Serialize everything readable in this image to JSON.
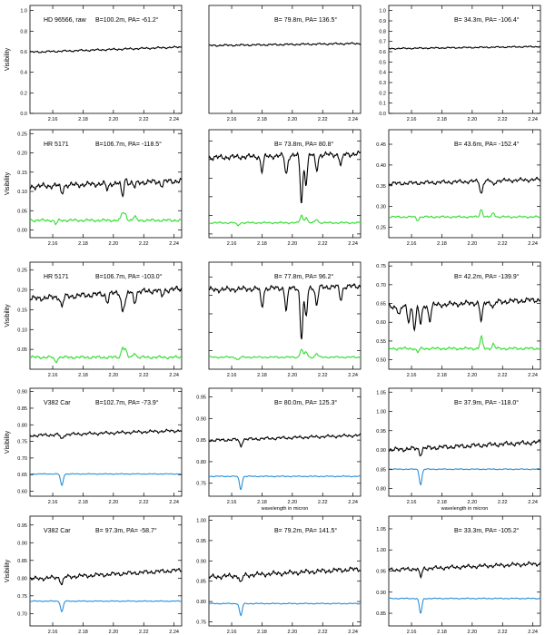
{
  "figure": {
    "x_axis_title": "wavelength in micron"
  },
  "chart_data": [
    {
      "type": "line",
      "row": 0,
      "col": 0,
      "star": "HD 96566, raw",
      "baseline": "B=100.2m, PA= -61.2°",
      "ylabel": "Visibility",
      "ylim": [
        0.0,
        1.05
      ],
      "yticks": [
        0.0,
        0.2,
        0.4,
        0.6,
        0.8,
        1.0
      ],
      "ytick_labels": [
        "0.0",
        "0.2",
        "0.4",
        "0.6",
        "0.8",
        "1.0"
      ],
      "xlim": [
        2.145,
        2.245
      ],
      "xticks": [
        2.16,
        2.18,
        2.2,
        2.22,
        2.24
      ],
      "xtick_labels": [
        "2.16",
        "2.18",
        "2.20",
        "2.22",
        "2.24"
      ],
      "xlabel": "",
      "series": [
        {
          "color": "#000000",
          "level": 0.62,
          "trend": 0.05,
          "noise": 0.008
        }
      ]
    },
    {
      "type": "line",
      "row": 0,
      "col": 1,
      "star": "",
      "baseline": "B= 79.8m, PA= 136.5°",
      "ylabel": "",
      "ylim": [
        0.0,
        1.05
      ],
      "yticks": [],
      "ytick_labels": [],
      "xlim": [
        2.145,
        2.245
      ],
      "xticks": [
        2.16,
        2.18,
        2.2,
        2.22,
        2.24
      ],
      "xtick_labels": [
        "2.16",
        "2.18",
        "2.20",
        "2.22",
        "2.24"
      ],
      "xlabel": "",
      "series": [
        {
          "color": "#000000",
          "level": 0.67,
          "trend": 0.02,
          "noise": 0.008
        }
      ]
    },
    {
      "type": "line",
      "row": 0,
      "col": 2,
      "star": "",
      "baseline": "B= 34.3m, PA= -106.4°",
      "ylabel": "",
      "ylim": [
        0.0,
        1.05
      ],
      "yticks": [
        0.0,
        0.1,
        0.2,
        0.3,
        0.4,
        0.5,
        0.6,
        0.7,
        0.8,
        0.9,
        1.0
      ],
      "ytick_labels": [
        "0.0",
        "0.1",
        "0.2",
        "0.3",
        "0.4",
        "0.5",
        "0.6",
        "0.7",
        "0.8",
        "0.9",
        "1.0"
      ],
      "xlim": [
        2.145,
        2.245
      ],
      "xticks": [
        2.16,
        2.18,
        2.2,
        2.22,
        2.24
      ],
      "xtick_labels": [
        "2.16",
        "2.18",
        "2.20",
        "2.22",
        "2.24"
      ],
      "xlabel": "",
      "series": [
        {
          "color": "#000000",
          "level": 0.64,
          "trend": 0.02,
          "noise": 0.006
        }
      ]
    },
    {
      "type": "line",
      "row": 1,
      "col": 0,
      "star": "HR 5171",
      "baseline": "B=106.7m, PA= -118.5°",
      "ylabel": "Visibility",
      "ylim": [
        -0.02,
        0.26
      ],
      "yticks": [
        0.0,
        0.05,
        0.1,
        0.15,
        0.2,
        0.25
      ],
      "ytick_labels": [
        "0.00",
        "0.05",
        "0.10",
        "0.15",
        "0.20",
        "0.25"
      ],
      "xlim": [
        2.145,
        2.245
      ],
      "xticks": [
        2.16,
        2.18,
        2.2,
        2.22,
        2.24
      ],
      "xtick_labels": [
        "2.16",
        "2.18",
        "2.20",
        "2.22",
        "2.24"
      ],
      "xlabel": "",
      "series": [
        {
          "color": "#000000",
          "level": 0.12,
          "trend": 0.015,
          "noise": 0.006,
          "features": [
            [
              2.166,
              -0.02
            ],
            [
              2.196,
              -0.015
            ],
            [
              2.206,
              -0.035
            ],
            [
              2.208,
              0.012
            ],
            [
              2.214,
              -0.012
            ],
            [
              2.232,
              -0.01
            ]
          ]
        },
        {
          "color": "#33dd33",
          "level": 0.025,
          "trend": 0.0,
          "noise": 0.003,
          "features": [
            [
              2.162,
              -0.01
            ],
            [
              2.206,
              0.02
            ],
            [
              2.208,
              0.015
            ],
            [
              2.214,
              0.01
            ]
          ]
        }
      ]
    },
    {
      "type": "line",
      "row": 1,
      "col": 1,
      "star": "",
      "baseline": "B= 73.8m, PA= 80.8°",
      "ylabel": "",
      "ylim": [
        -0.02,
        0.56
      ],
      "yticks": [
        0.0,
        0.1,
        0.2,
        0.3,
        0.4,
        0.5
      ],
      "ytick_labels": [],
      "xlim": [
        2.145,
        2.245
      ],
      "xticks": [
        2.16,
        2.18,
        2.2,
        2.22,
        2.24
      ],
      "xtick_labels": [
        "2.16",
        "2.18",
        "2.20",
        "2.22",
        "2.24"
      ],
      "xlabel": "",
      "series": [
        {
          "color": "#000000",
          "level": 0.42,
          "trend": 0.02,
          "noise": 0.012,
          "features": [
            [
              2.18,
              -0.08
            ],
            [
              2.196,
              -0.1
            ],
            [
              2.206,
              -0.25
            ],
            [
              2.209,
              -0.15
            ],
            [
              2.216,
              -0.08
            ],
            [
              2.232,
              -0.06
            ]
          ]
        },
        {
          "color": "#33dd33",
          "level": 0.06,
          "trend": 0.0,
          "noise": 0.004,
          "features": [
            [
              2.164,
              -0.015
            ],
            [
              2.206,
              0.04
            ],
            [
              2.209,
              0.03
            ],
            [
              2.216,
              0.02
            ]
          ]
        }
      ]
    },
    {
      "type": "line",
      "row": 1,
      "col": 2,
      "star": "",
      "baseline": "B= 43.6m, PA= -152.4°",
      "ylabel": "",
      "ylim": [
        0.225,
        0.485
      ],
      "yticks": [
        0.25,
        0.3,
        0.35,
        0.4,
        0.45
      ],
      "ytick_labels": [
        "0.25",
        "0.30",
        "0.35",
        "0.40",
        "0.45"
      ],
      "xlim": [
        2.145,
        2.245
      ],
      "xticks": [
        2.16,
        2.18,
        2.2,
        2.22,
        2.24
      ],
      "xtick_labels": [
        "2.16",
        "2.18",
        "2.20",
        "2.22",
        "2.24"
      ],
      "xlabel": "",
      "series": [
        {
          "color": "#000000",
          "level": 0.36,
          "trend": 0.01,
          "noise": 0.004,
          "features": [
            [
              2.206,
              -0.03
            ],
            [
              2.214,
              -0.01
            ]
          ]
        },
        {
          "color": "#33dd33",
          "level": 0.275,
          "trend": 0.0,
          "noise": 0.002,
          "features": [
            [
              2.164,
              -0.008
            ],
            [
              2.206,
              0.018
            ],
            [
              2.214,
              0.01
            ]
          ]
        }
      ]
    },
    {
      "type": "line",
      "row": 2,
      "col": 0,
      "star": "HR 5171",
      "baseline": "B=106.7m, PA= -103.0°",
      "ylabel": "Visibility",
      "ylim": [
        0.0,
        0.27
      ],
      "yticks": [
        0.05,
        0.1,
        0.15,
        0.2,
        0.25
      ],
      "ytick_labels": [
        "0.05",
        "0.10",
        "0.15",
        "0.20",
        "0.25"
      ],
      "xlim": [
        2.145,
        2.245
      ],
      "xticks": [
        2.16,
        2.18,
        2.2,
        2.22,
        2.24
      ],
      "xtick_labels": [
        "2.16",
        "2.18",
        "2.20",
        "2.22",
        "2.24"
      ],
      "xlabel": "",
      "series": [
        {
          "color": "#000000",
          "level": 0.19,
          "trend": 0.025,
          "noise": 0.006,
          "features": [
            [
              2.166,
              -0.025
            ],
            [
              2.196,
              -0.02
            ],
            [
              2.206,
              -0.045
            ],
            [
              2.208,
              -0.02
            ],
            [
              2.214,
              -0.025
            ],
            [
              2.232,
              -0.015
            ]
          ]
        },
        {
          "color": "#33dd33",
          "level": 0.03,
          "trend": 0.0,
          "noise": 0.003,
          "features": [
            [
              2.162,
              -0.012
            ],
            [
              2.206,
              0.025
            ],
            [
              2.208,
              0.018
            ],
            [
              2.214,
              0.012
            ]
          ]
        }
      ]
    },
    {
      "type": "line",
      "row": 2,
      "col": 1,
      "star": "",
      "baseline": "B= 77.8m, PA= 96.2°",
      "ylabel": "",
      "ylim": [
        0.0,
        0.58
      ],
      "yticks": [
        0.1,
        0.2,
        0.3,
        0.4,
        0.5
      ],
      "ytick_labels": [],
      "xlim": [
        2.145,
        2.245
      ],
      "xticks": [
        2.16,
        2.18,
        2.2,
        2.22,
        2.24
      ],
      "xtick_labels": [
        "2.16",
        "2.18",
        "2.20",
        "2.22",
        "2.24"
      ],
      "xlabel": "",
      "series": [
        {
          "color": "#000000",
          "level": 0.44,
          "trend": 0.02,
          "noise": 0.012,
          "features": [
            [
              2.18,
              -0.1
            ],
            [
              2.196,
              -0.12
            ],
            [
              2.206,
              -0.28
            ],
            [
              2.209,
              -0.16
            ],
            [
              2.216,
              -0.1
            ],
            [
              2.232,
              -0.07
            ]
          ]
        },
        {
          "color": "#33dd33",
          "level": 0.065,
          "trend": 0.0,
          "noise": 0.004,
          "features": [
            [
              2.164,
              -0.015
            ],
            [
              2.206,
              0.045
            ],
            [
              2.209,
              0.03
            ],
            [
              2.216,
              0.02
            ]
          ]
        }
      ]
    },
    {
      "type": "line",
      "row": 2,
      "col": 2,
      "star": "",
      "baseline": "B= 42.2m, PA= -139.9°",
      "ylabel": "",
      "ylim": [
        0.475,
        0.76
      ],
      "yticks": [
        0.5,
        0.55,
        0.6,
        0.65,
        0.7,
        0.75
      ],
      "ytick_labels": [
        "0.50",
        "0.55",
        "0.60",
        "0.65",
        "0.70",
        "0.75"
      ],
      "xlim": [
        2.145,
        2.245
      ],
      "xticks": [
        2.16,
        2.18,
        2.2,
        2.22,
        2.24
      ],
      "xtick_labels": [
        "2.16",
        "2.18",
        "2.20",
        "2.22",
        "2.24"
      ],
      "xlabel": "",
      "series": [
        {
          "color": "#000000",
          "level": 0.65,
          "trend": 0.02,
          "noise": 0.006,
          "features": [
            [
              2.152,
              -0.02
            ],
            [
              2.158,
              -0.04
            ],
            [
              2.162,
              -0.06
            ],
            [
              2.166,
              -0.05
            ],
            [
              2.172,
              -0.04
            ],
            [
              2.206,
              -0.05
            ],
            [
              2.214,
              -0.015
            ]
          ]
        },
        {
          "color": "#33dd33",
          "level": 0.53,
          "trend": 0.0,
          "noise": 0.003,
          "features": [
            [
              2.164,
              -0.01
            ],
            [
              2.206,
              0.03
            ],
            [
              2.214,
              0.012
            ]
          ]
        }
      ]
    },
    {
      "type": "line",
      "row": 3,
      "col": 0,
      "star": "V382 Car",
      "baseline": "B=102.7m, PA= -73.9°",
      "ylabel": "Visibility",
      "ylim": [
        0.585,
        0.91
      ],
      "yticks": [
        0.6,
        0.65,
        0.7,
        0.75,
        0.8,
        0.85,
        0.9
      ],
      "ytick_labels": [
        "0.60",
        "0.65",
        "0.70",
        "0.75",
        "0.80",
        "0.85",
        "0.90"
      ],
      "xlim": [
        2.145,
        2.245
      ],
      "xticks": [
        2.16,
        2.18,
        2.2,
        2.22,
        2.24
      ],
      "xtick_labels": [
        "2.16",
        "2.18",
        "2.20",
        "2.22",
        "2.24"
      ],
      "xlabel": "",
      "series": [
        {
          "color": "#000000",
          "level": 0.775,
          "trend": 0.015,
          "noise": 0.004,
          "features": [
            [
              2.166,
              -0.015
            ]
          ]
        },
        {
          "color": "#2a8fd8",
          "level": 0.652,
          "trend": 0.0,
          "noise": 0.001,
          "features": [
            [
              2.166,
              -0.035
            ]
          ]
        }
      ]
    },
    {
      "type": "line",
      "row": 3,
      "col": 1,
      "star": "",
      "baseline": "B= 80.0m, PA= 125.3°",
      "ylabel": "",
      "ylim": [
        0.72,
        0.97
      ],
      "yticks": [
        0.75,
        0.8,
        0.85,
        0.9,
        0.95
      ],
      "ytick_labels": [
        "0.75",
        "0.80",
        "0.85",
        "0.90",
        "0.95"
      ],
      "xlim": [
        2.145,
        2.245
      ],
      "xticks": [
        2.16,
        2.18,
        2.2,
        2.22,
        2.24
      ],
      "xtick_labels": [
        "2.16",
        "2.18",
        "2.20",
        "2.22",
        "2.24"
      ],
      "xlabel": "wavelength in micron",
      "series": [
        {
          "color": "#000000",
          "level": 0.855,
          "trend": 0.012,
          "noise": 0.003,
          "features": [
            [
              2.166,
              -0.015
            ]
          ]
        },
        {
          "color": "#2a8fd8",
          "level": 0.766,
          "trend": 0.0,
          "noise": 0.001,
          "features": [
            [
              2.166,
              -0.03
            ]
          ]
        }
      ]
    },
    {
      "type": "line",
      "row": 3,
      "col": 2,
      "star": "",
      "baseline": "B= 37.9m, PA= -118.0°",
      "ylabel": "",
      "ylim": [
        0.78,
        1.06
      ],
      "yticks": [
        0.8,
        0.85,
        0.9,
        0.95,
        1.0,
        1.05
      ],
      "ytick_labels": [
        "0.80",
        "0.85",
        "0.90",
        "0.95",
        "1.00",
        "1.05"
      ],
      "xlim": [
        2.145,
        2.245
      ],
      "xticks": [
        2.16,
        2.18,
        2.2,
        2.22,
        2.24
      ],
      "xtick_labels": [
        "2.16",
        "2.18",
        "2.20",
        "2.22",
        "2.24"
      ],
      "xlabel": "wavelength in micron",
      "series": [
        {
          "color": "#000000",
          "level": 0.91,
          "trend": 0.02,
          "noise": 0.005,
          "features": [
            [
              2.166,
              -0.015
            ]
          ]
        },
        {
          "color": "#2a8fd8",
          "level": 0.85,
          "trend": 0.0,
          "noise": 0.001,
          "features": [
            [
              2.166,
              -0.04
            ]
          ]
        }
      ]
    },
    {
      "type": "line",
      "row": 4,
      "col": 0,
      "star": "V382 Car",
      "baseline": "B= 97.3m, PA= -58.7°",
      "ylabel": "Visibility",
      "ylim": [
        0.665,
        0.975
      ],
      "yticks": [
        0.7,
        0.75,
        0.8,
        0.85,
        0.9,
        0.95
      ],
      "ytick_labels": [
        "0.70",
        "0.75",
        "0.80",
        "0.85",
        "0.90",
        "0.95"
      ],
      "xlim": [
        2.145,
        2.245
      ],
      "xticks": [
        2.16,
        2.18,
        2.2,
        2.22,
        2.24
      ],
      "xtick_labels": [
        "2.16",
        "2.18",
        "2.20",
        "2.22",
        "2.24"
      ],
      "xlabel": "",
      "series": [
        {
          "color": "#000000",
          "level": 0.81,
          "trend": 0.025,
          "noise": 0.005,
          "features": [
            [
              2.166,
              -0.02
            ]
          ]
        },
        {
          "color": "#2a8fd8",
          "level": 0.735,
          "trend": 0.0,
          "noise": 0.001,
          "features": [
            [
              2.166,
              -0.03
            ]
          ]
        }
      ]
    },
    {
      "type": "line",
      "row": 4,
      "col": 1,
      "star": "",
      "baseline": "B= 79.2m, PA= 141.5°",
      "ylabel": "",
      "ylim": [
        0.74,
        1.01
      ],
      "yticks": [
        0.75,
        0.8,
        0.85,
        0.9,
        0.95,
        1.0
      ],
      "ytick_labels": [
        "0.75",
        "0.80",
        "0.85",
        "0.90",
        "0.95",
        "1.00"
      ],
      "xlim": [
        2.145,
        2.245
      ],
      "xticks": [
        2.16,
        2.18,
        2.2,
        2.22,
        2.24
      ],
      "xtick_labels": [
        "2.16",
        "2.18",
        "2.20",
        "2.22",
        "2.24"
      ],
      "xlabel": "",
      "series": [
        {
          "color": "#000000",
          "level": 0.87,
          "trend": 0.02,
          "noise": 0.005,
          "features": [
            [
              2.166,
              -0.02
            ]
          ]
        },
        {
          "color": "#2a8fd8",
          "level": 0.795,
          "trend": 0.0,
          "noise": 0.001,
          "features": [
            [
              2.166,
              -0.03
            ]
          ]
        }
      ]
    },
    {
      "type": "line",
      "row": 4,
      "col": 2,
      "star": "",
      "baseline": "B= 33.3m, PA= -105.2°",
      "ylabel": "",
      "ylim": [
        0.82,
        1.08
      ],
      "yticks": [
        0.85,
        0.9,
        0.95,
        1.0,
        1.05
      ],
      "ytick_labels": [
        "0.85",
        "0.90",
        "0.95",
        "1.00",
        "1.05"
      ],
      "xlim": [
        2.145,
        2.245
      ],
      "xticks": [
        2.16,
        2.18,
        2.2,
        2.22,
        2.24
      ],
      "xtick_labels": [
        "2.16",
        "2.18",
        "2.20",
        "2.22",
        "2.24"
      ],
      "xlabel": "",
      "series": [
        {
          "color": "#000000",
          "level": 0.96,
          "trend": 0.015,
          "noise": 0.004,
          "features": [
            [
              2.166,
              -0.02
            ]
          ]
        },
        {
          "color": "#2a8fd8",
          "level": 0.885,
          "trend": 0.0,
          "noise": 0.001,
          "features": [
            [
              2.166,
              -0.035
            ]
          ]
        }
      ]
    }
  ]
}
